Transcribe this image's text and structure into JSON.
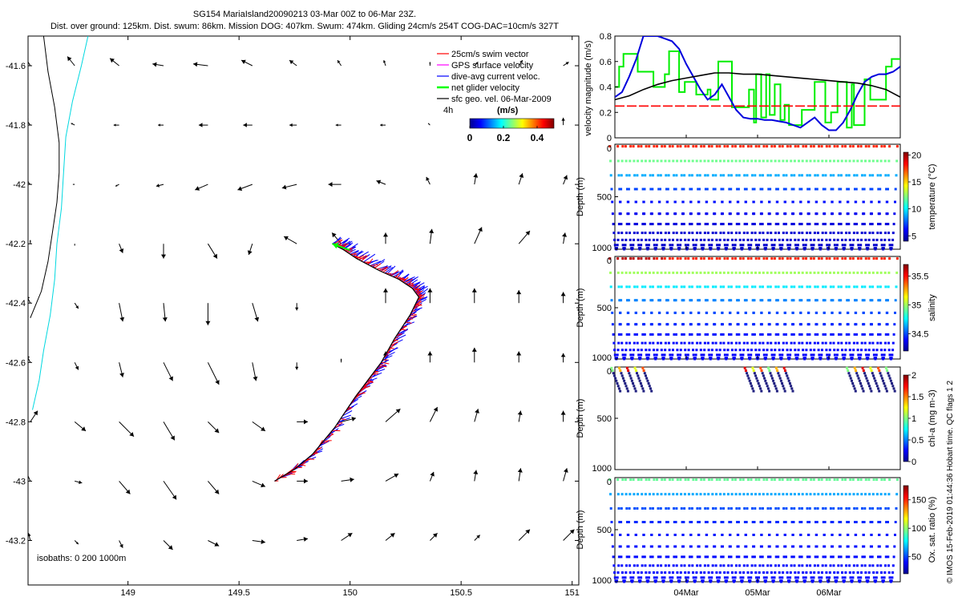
{
  "header": {
    "title_line1": "SG154 MariaIsland20090213 03-Mar 00Z to 06-Mar 23Z.",
    "title_line2": "Dist. over ground: 125km. Dist. swum: 86km. Mission DOG: 407km. Swum: 474km. Gliding 24cm/s 254T COG-DAC=10cm/s 327T"
  },
  "copyright": "© IMOS 15-Feb-2019 01:44:36 Hobart time. QC flags 1 2",
  "chart_data": [
    {
      "type": "scatter",
      "name": "map",
      "xlim": [
        148.55,
        151.03
      ],
      "ylim": [
        -43.35,
        -41.5
      ],
      "x_ticks": [
        149,
        149.5,
        150,
        150.5,
        151
      ],
      "x_tick_labels": [
        "149",
        "149.5",
        "150",
        "150.5",
        "151"
      ],
      "y_ticks": [
        -41.6,
        -41.8,
        -42,
        -42.2,
        -42.4,
        -42.6,
        -42.8,
        -43,
        -43.2
      ],
      "y_tick_labels": [
        "-41.6",
        "-41.8",
        "-42",
        "-42.2",
        "-42.4",
        "-42.6",
        "-42.8",
        "-43",
        "-43.2"
      ],
      "legend": {
        "placement": "top-right",
        "entries": [
          {
            "label": "25cm/s swim vector",
            "color": "#ff0000"
          },
          {
            "label": "GPS surface velocity",
            "color": "#ff00ff"
          },
          {
            "label": "dive-avg current veloc.",
            "color": "#0000ff"
          },
          {
            "label": "net glider velocity",
            "color": "#00ff00"
          },
          {
            "label": "sfc geo. vel. 06-Mar-2009",
            "color": "#000000"
          }
        ]
      },
      "colorbar": {
        "top_label": "4h",
        "unit_label": "(m/s)",
        "ticks": [
          0,
          0.2,
          0.4
        ],
        "tick_labels": [
          "0",
          "0.2",
          "0.4"
        ],
        "range": [
          0,
          0.5
        ]
      },
      "isobath_label": "isobaths: 0   200   1000m",
      "coastline_isobath": [
        [
          148.62,
          -41.5
        ],
        [
          148.64,
          -41.62
        ],
        [
          148.67,
          -41.74
        ],
        [
          148.69,
          -41.86
        ],
        [
          148.69,
          -41.96
        ],
        [
          148.68,
          -42.06
        ],
        [
          148.66,
          -42.16
        ],
        [
          148.64,
          -42.26
        ],
        [
          148.61,
          -42.36
        ],
        [
          148.56,
          -42.45
        ]
      ],
      "isobath_200": [
        [
          148.82,
          -41.5
        ],
        [
          148.79,
          -41.6
        ],
        [
          148.75,
          -41.72
        ],
        [
          148.72,
          -41.84
        ],
        [
          148.71,
          -41.96
        ],
        [
          148.7,
          -42.08
        ],
        [
          148.68,
          -42.2
        ],
        [
          148.67,
          -42.32
        ],
        [
          148.65,
          -42.44
        ],
        [
          148.62,
          -42.56
        ],
        [
          148.6,
          -42.66
        ],
        [
          148.57,
          -42.76
        ]
      ],
      "glider_track": [
        [
          149.66,
          -43.0
        ],
        [
          149.75,
          -42.96
        ],
        [
          149.83,
          -42.91
        ],
        [
          149.93,
          -42.82
        ],
        [
          150.02,
          -42.72
        ],
        [
          150.08,
          -42.66
        ],
        [
          150.14,
          -42.6
        ],
        [
          150.2,
          -42.52
        ],
        [
          150.27,
          -42.44
        ],
        [
          150.31,
          -42.38
        ],
        [
          150.28,
          -42.35
        ],
        [
          150.22,
          -42.32
        ],
        [
          150.13,
          -42.29
        ],
        [
          150.03,
          -42.25
        ],
        [
          149.97,
          -42.22
        ],
        [
          149.92,
          -42.2
        ]
      ],
      "surface_vectors_uv_mps": [
        [
          [
            -0.07,
            0.12
          ],
          [
            -0.04,
            0.05
          ],
          [
            -0.05,
            0.04
          ],
          [
            -0.06,
            0.01
          ],
          [
            -0.08,
            0.01
          ],
          [
            -0.06,
            0.03
          ],
          [
            -0.04,
            0.03
          ],
          [
            -0.02,
            0.03
          ],
          [
            -0.01,
            0.03
          ],
          [
            0.0,
            0.02
          ],
          [
            0.02,
            0.02
          ],
          [
            0.02,
            0.03
          ],
          [
            0.03,
            0.02
          ]
        ],
        [
          [
            -0.03,
            0.04
          ],
          [
            -0.02,
            0.01
          ],
          [
            -0.03,
            0.0
          ],
          [
            -0.03,
            0.0
          ],
          [
            -0.05,
            0.0
          ],
          [
            -0.05,
            0.0
          ],
          [
            -0.04,
            0.0
          ],
          [
            -0.03,
            0.0
          ],
          [
            -0.03,
            0.0
          ],
          [
            -0.01,
            0.01
          ],
          [
            0.0,
            0.02
          ],
          [
            0.0,
            0.03
          ],
          [
            0.0,
            0.04
          ]
        ],
        [
          [
            -0.02,
            0.02
          ],
          [
            -0.01,
            0.0
          ],
          [
            -0.02,
            -0.01
          ],
          [
            -0.04,
            -0.01
          ],
          [
            -0.07,
            -0.03
          ],
          [
            -0.08,
            -0.03
          ],
          [
            -0.08,
            -0.02
          ],
          [
            -0.07,
            0.0
          ],
          [
            -0.05,
            0.02
          ],
          [
            -0.02,
            0.04
          ],
          [
            0.01,
            0.06
          ],
          [
            0.02,
            0.06
          ],
          [
            0.02,
            0.05
          ]
        ],
        [
          [
            0.0,
            0.02
          ],
          [
            0.0,
            -0.01
          ],
          [
            0.02,
            -0.05
          ],
          [
            0.0,
            -0.08
          ],
          [
            0.05,
            -0.08
          ],
          [
            -0.02,
            -0.06
          ],
          [
            -0.07,
            0.04
          ],
          [
            -0.05,
            0.06
          ],
          [
            0.0,
            0.06
          ],
          [
            0.01,
            0.08
          ],
          [
            0.04,
            0.09
          ],
          [
            0.06,
            0.07
          ],
          [
            0.01,
            0.06
          ]
        ],
        [
          [
            -0.02,
            0.04
          ],
          [
            0.02,
            -0.03
          ],
          [
            0.02,
            -0.1
          ],
          [
            0.01,
            -0.1
          ],
          [
            0.0,
            -0.12
          ],
          [
            0.03,
            -0.1
          ],
          [
            0.0,
            -0.04
          ],
          [
            0.0,
            0.0
          ],
          [
            0.0,
            0.08
          ],
          [
            0.0,
            0.08
          ],
          [
            0.0,
            0.08
          ],
          [
            0.0,
            0.07
          ],
          [
            0.0,
            0.06
          ]
        ],
        [
          [
            -0.02,
            0.04
          ],
          [
            0.02,
            -0.04
          ],
          [
            0.02,
            -0.08
          ],
          [
            0.05,
            -0.1
          ],
          [
            0.06,
            -0.12
          ],
          [
            0.02,
            -0.1
          ],
          [
            0.0,
            -0.04
          ],
          [
            0.0,
            0.02
          ],
          [
            0.0,
            0.06
          ],
          [
            0.0,
            0.06
          ],
          [
            0.0,
            0.08
          ],
          [
            0.0,
            0.06
          ],
          [
            0.0,
            0.05
          ]
        ],
        [
          [
            0.04,
            0.06
          ],
          [
            0.06,
            -0.05
          ],
          [
            0.08,
            -0.08
          ],
          [
            0.06,
            -0.1
          ],
          [
            0.06,
            -0.06
          ],
          [
            0.07,
            -0.05
          ],
          [
            0.06,
            0.0
          ],
          [
            0.08,
            0.02
          ],
          [
            0.08,
            0.07
          ],
          [
            0.04,
            0.08
          ],
          [
            0.02,
            0.07
          ],
          [
            0.01,
            0.06
          ],
          [
            0.0,
            0.06
          ]
        ],
        [
          [
            -0.03,
            0.07
          ],
          [
            0.04,
            -0.01
          ],
          [
            0.06,
            -0.07
          ],
          [
            0.07,
            -0.1
          ],
          [
            0.06,
            -0.07
          ],
          [
            0.07,
            -0.03
          ],
          [
            0.06,
            0.0
          ],
          [
            0.07,
            0.01
          ],
          [
            0.07,
            0.04
          ],
          [
            0.02,
            0.05
          ],
          [
            0.01,
            0.06
          ],
          [
            0.01,
            0.07
          ],
          [
            0.02,
            0.07
          ]
        ],
        [
          [
            -0.01,
            0.04
          ],
          [
            0.02,
            -0.02
          ],
          [
            0.02,
            -0.04
          ],
          [
            0.05,
            -0.05
          ],
          [
            0.06,
            -0.03
          ],
          [
            0.07,
            -0.01
          ],
          [
            0.06,
            0.01
          ],
          [
            0.06,
            0.04
          ],
          [
            0.05,
            0.04
          ],
          [
            0.04,
            0.04
          ],
          [
            0.03,
            0.03
          ],
          [
            0.06,
            0.06
          ],
          [
            0.06,
            0.06
          ]
        ]
      ]
    },
    {
      "type": "line",
      "name": "velocity",
      "ylabel": "velocity magnitude (m/s)",
      "xlim": [
        3.0,
        7.0
      ],
      "ylim": [
        0,
        0.8
      ],
      "y_ticks": [
        0,
        0.2,
        0.4,
        0.6,
        0.8
      ],
      "y_tick_labels": [
        "0",
        "0.2",
        "0.4",
        "0.6",
        "0.8"
      ],
      "series": [
        {
          "color": "#00ee00",
          "x": [
            3.0,
            3.06,
            3.06,
            3.12,
            3.12,
            3.32,
            3.32,
            3.54,
            3.54,
            3.7,
            3.7,
            3.76,
            3.76,
            3.9,
            3.9,
            3.98,
            3.98,
            4.14,
            4.14,
            4.3,
            4.3,
            4.34,
            4.34,
            4.45,
            4.45,
            4.64,
            4.64,
            4.88,
            4.88,
            4.95,
            4.95,
            4.98,
            4.98,
            5.05,
            5.05,
            5.12,
            5.12,
            5.17,
            5.17,
            5.24,
            5.24,
            5.32,
            5.32,
            5.38,
            5.38,
            5.44,
            5.44,
            5.62,
            5.62,
            5.8,
            5.8,
            5.95,
            5.95,
            6.03,
            6.03,
            6.12,
            6.12,
            6.25,
            6.25,
            6.32,
            6.32,
            6.35,
            6.35,
            6.5,
            6.5,
            6.58,
            6.58,
            6.8,
            6.8,
            6.88,
            6.88,
            7.0
          ],
          "y": [
            0.4,
            0.4,
            0.56,
            0.56,
            0.66,
            0.66,
            0.52,
            0.52,
            0.4,
            0.4,
            0.5,
            0.5,
            0.68,
            0.68,
            0.36,
            0.36,
            0.44,
            0.44,
            0.34,
            0.34,
            0.38,
            0.38,
            0.3,
            0.3,
            0.6,
            0.6,
            0.24,
            0.24,
            0.38,
            0.38,
            0.12,
            0.12,
            0.5,
            0.5,
            0.16,
            0.16,
            0.5,
            0.5,
            0.18,
            0.18,
            0.42,
            0.42,
            0.14,
            0.14,
            0.26,
            0.26,
            0.1,
            0.1,
            0.22,
            0.22,
            0.44,
            0.44,
            0.12,
            0.12,
            0.2,
            0.2,
            0.44,
            0.44,
            0.08,
            0.08,
            0.42,
            0.42,
            0.1,
            0.1,
            0.46,
            0.46,
            0.3,
            0.3,
            0.56,
            0.56,
            0.62,
            0.62
          ]
        },
        {
          "color": "#0000dd",
          "x": [
            3.0,
            3.1,
            3.2,
            3.3,
            3.4,
            3.5,
            3.6,
            3.7,
            3.8,
            3.9,
            4.0,
            4.1,
            4.2,
            4.3,
            4.4,
            4.5,
            4.6,
            4.7,
            4.8,
            4.9,
            5.0,
            5.1,
            5.2,
            5.3,
            5.4,
            5.5,
            5.6,
            5.7,
            5.8,
            5.9,
            6.0,
            6.1,
            6.2,
            6.3,
            6.4,
            6.5,
            6.6,
            6.7,
            6.8,
            6.9,
            7.0
          ],
          "y": [
            0.32,
            0.36,
            0.48,
            0.62,
            0.8,
            0.8,
            0.8,
            0.78,
            0.76,
            0.7,
            0.58,
            0.48,
            0.38,
            0.3,
            0.34,
            0.42,
            0.32,
            0.22,
            0.16,
            0.15,
            0.15,
            0.14,
            0.14,
            0.13,
            0.12,
            0.1,
            0.08,
            0.12,
            0.16,
            0.1,
            0.06,
            0.06,
            0.12,
            0.22,
            0.34,
            0.44,
            0.48,
            0.5,
            0.5,
            0.52,
            0.56
          ]
        },
        {
          "color": "#000000",
          "x": [
            3.0,
            3.2,
            3.4,
            3.6,
            3.8,
            4.0,
            4.2,
            4.4,
            4.6,
            4.8,
            5.0,
            5.2,
            5.4,
            5.6,
            5.8,
            6.0,
            6.2,
            6.4,
            6.6,
            6.8,
            7.0
          ],
          "y": [
            0.3,
            0.33,
            0.38,
            0.42,
            0.45,
            0.47,
            0.49,
            0.51,
            0.51,
            0.5,
            0.5,
            0.49,
            0.48,
            0.47,
            0.46,
            0.45,
            0.44,
            0.43,
            0.41,
            0.38,
            0.32
          ]
        },
        {
          "color": "#ff0000",
          "x": [
            3.0,
            7.0
          ],
          "y": [
            0.25,
            0.25
          ]
        }
      ]
    },
    {
      "type": "scatter",
      "name": "temperature",
      "ylabel": "Depth (m)",
      "colorbar_label": "temperature (°C)",
      "colorbar_ticks": [
        5,
        10,
        15,
        20
      ],
      "colorbar_tick_labels": [
        "5",
        "10",
        "15",
        "20"
      ],
      "colorbar_range": [
        4,
        20.5
      ],
      "ylim": [
        0,
        1000
      ],
      "y_ticks": [
        0,
        500,
        1000
      ],
      "y_tick_labels": [
        "0",
        "500",
        "1000"
      ]
    },
    {
      "type": "scatter",
      "name": "salinity",
      "ylabel": "Depth (m)",
      "colorbar_label": "salinity",
      "colorbar_ticks": [
        34.5,
        35,
        35.5
      ],
      "colorbar_tick_labels": [
        "34.5",
        "35",
        "35.5"
      ],
      "colorbar_range": [
        34.2,
        35.7
      ],
      "ylim": [
        0,
        1000
      ],
      "y_ticks": [
        0,
        500,
        1000
      ],
      "y_tick_labels": [
        "0",
        "500",
        "1000"
      ]
    },
    {
      "type": "scatter",
      "name": "chla",
      "ylabel": "Depth (m)",
      "colorbar_label": "chl-a (mg m-3)",
      "colorbar_ticks": [
        0,
        0.5,
        1,
        1.5,
        2
      ],
      "colorbar_tick_labels": [
        "0",
        "0.5",
        "1",
        "1.5",
        "2"
      ],
      "colorbar_range": [
        0,
        2
      ],
      "ylim": [
        0,
        1000
      ],
      "y_ticks": [
        0,
        500,
        1000
      ],
      "y_tick_labels": [
        "0",
        "500",
        "1000"
      ]
    },
    {
      "type": "scatter",
      "name": "oxygen",
      "ylabel": "Depth (m)",
      "colorbar_label": "Ox. sat. ratio (%)",
      "colorbar_ticks": [
        50,
        100,
        150
      ],
      "colorbar_tick_labels": [
        "50",
        "100",
        "150"
      ],
      "colorbar_range": [
        20,
        175
      ],
      "ylim": [
        0,
        1000
      ],
      "y_ticks": [
        0,
        500,
        1000
      ],
      "y_tick_labels": [
        "0",
        "500",
        "1000"
      ]
    }
  ],
  "time_axis": {
    "xlim": [
      3.0,
      7.0
    ],
    "ticks": [
      4,
      5,
      6
    ],
    "tick_labels": [
      "04Mar",
      "05Mar",
      "06Mar"
    ]
  }
}
